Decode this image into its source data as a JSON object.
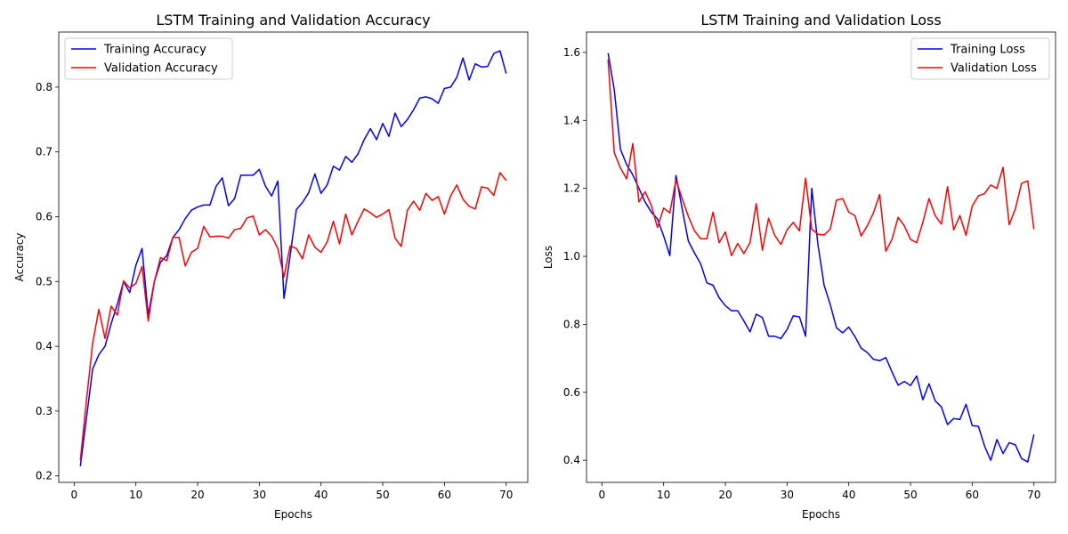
{
  "chart_data": [
    {
      "type": "line",
      "title": "LSTM Training and Validation Accuracy",
      "xlabel": "Epochs",
      "ylabel": "Accuracy",
      "xlim": [
        -2.5,
        73.5
      ],
      "ylim": [
        0.19,
        0.885
      ],
      "xticks": [
        0,
        10,
        20,
        30,
        40,
        50,
        60,
        70
      ],
      "yticks": [
        0.2,
        0.3,
        0.4,
        0.5,
        0.6,
        0.7,
        0.8
      ],
      "legend_position": "top-left",
      "grid": false,
      "x": [
        1,
        2,
        3,
        4,
        5,
        6,
        7,
        8,
        9,
        10,
        11,
        12,
        13,
        14,
        15,
        16,
        17,
        18,
        19,
        20,
        21,
        22,
        23,
        24,
        25,
        26,
        27,
        28,
        29,
        30,
        31,
        32,
        33,
        34,
        35,
        36,
        37,
        38,
        39,
        40,
        41,
        42,
        43,
        44,
        45,
        46,
        47,
        48,
        49,
        50,
        51,
        52,
        53,
        54,
        55,
        56,
        57,
        58,
        59,
        60,
        61,
        62,
        63,
        64,
        65,
        66,
        67,
        68,
        69,
        70
      ],
      "series": [
        {
          "name": "Training Accuracy",
          "color": "#0000ff",
          "values": [
            0.215,
            0.29,
            0.365,
            0.387,
            0.4,
            0.435,
            0.465,
            0.5,
            0.483,
            0.525,
            0.551,
            0.448,
            0.5,
            0.53,
            0.54,
            0.568,
            0.58,
            0.597,
            0.61,
            0.615,
            0.618,
            0.618,
            0.647,
            0.66,
            0.617,
            0.628,
            0.664,
            0.664,
            0.664,
            0.673,
            0.647,
            0.632,
            0.655,
            0.474,
            0.54,
            0.611,
            0.622,
            0.637,
            0.666,
            0.636,
            0.649,
            0.678,
            0.672,
            0.693,
            0.684,
            0.697,
            0.719,
            0.736,
            0.719,
            0.744,
            0.724,
            0.76,
            0.739,
            0.75,
            0.765,
            0.783,
            0.785,
            0.782,
            0.775,
            0.798,
            0.8,
            0.815,
            0.845,
            0.811,
            0.836,
            0.831,
            0.832,
            0.852,
            0.856,
            0.821
          ]
        },
        {
          "name": "Validation Accuracy",
          "color": "#ff0000",
          "values": [
            0.224,
            0.317,
            0.405,
            0.457,
            0.412,
            0.462,
            0.448,
            0.501,
            0.49,
            0.497,
            0.523,
            0.439,
            0.5,
            0.537,
            0.532,
            0.568,
            0.568,
            0.524,
            0.545,
            0.551,
            0.585,
            0.569,
            0.57,
            0.57,
            0.567,
            0.58,
            0.582,
            0.598,
            0.601,
            0.572,
            0.58,
            0.57,
            0.551,
            0.507,
            0.555,
            0.551,
            0.535,
            0.572,
            0.553,
            0.545,
            0.561,
            0.593,
            0.558,
            0.604,
            0.572,
            0.593,
            0.612,
            0.606,
            0.599,
            0.604,
            0.611,
            0.567,
            0.554,
            0.61,
            0.624,
            0.61,
            0.636,
            0.625,
            0.631,
            0.604,
            0.632,
            0.649,
            0.627,
            0.616,
            0.612,
            0.646,
            0.644,
            0.633,
            0.668,
            0.656
          ]
        }
      ]
    },
    {
      "type": "line",
      "title": "LSTM Training and Validation Loss",
      "xlabel": "Epochs",
      "ylabel": "Loss",
      "xlim": [
        -2.5,
        73.5
      ],
      "ylim": [
        0.335,
        1.66
      ],
      "xticks": [
        0,
        10,
        20,
        30,
        40,
        50,
        60,
        70
      ],
      "yticks": [
        0.4,
        0.6,
        0.8,
        1.0,
        1.2,
        1.4,
        1.6
      ],
      "legend_position": "top-right",
      "grid": false,
      "x": [
        1,
        2,
        3,
        4,
        5,
        6,
        7,
        8,
        9,
        10,
        11,
        12,
        13,
        14,
        15,
        16,
        17,
        18,
        19,
        20,
        21,
        22,
        23,
        24,
        25,
        26,
        27,
        28,
        29,
        30,
        31,
        32,
        33,
        34,
        35,
        36,
        37,
        38,
        39,
        40,
        41,
        42,
        43,
        44,
        45,
        46,
        47,
        48,
        49,
        50,
        51,
        52,
        53,
        54,
        55,
        56,
        57,
        58,
        59,
        60,
        61,
        62,
        63,
        64,
        65,
        66,
        67,
        68,
        69,
        70
      ],
      "series": [
        {
          "name": "Training Loss",
          "color": "#0000ff",
          "values": [
            1.598,
            1.49,
            1.315,
            1.27,
            1.24,
            1.2,
            1.16,
            1.13,
            1.11,
            1.06,
            1.002,
            1.238,
            1.14,
            1.045,
            1.01,
            0.978,
            0.922,
            0.915,
            0.878,
            0.855,
            0.84,
            0.84,
            0.81,
            0.778,
            0.83,
            0.82,
            0.765,
            0.765,
            0.758,
            0.785,
            0.825,
            0.822,
            0.765,
            1.2,
            1.035,
            0.915,
            0.858,
            0.79,
            0.775,
            0.792,
            0.764,
            0.73,
            0.717,
            0.697,
            0.693,
            0.702,
            0.66,
            0.621,
            0.632,
            0.62,
            0.648,
            0.578,
            0.625,
            0.575,
            0.557,
            0.505,
            0.523,
            0.52,
            0.565,
            0.502,
            0.5,
            0.442,
            0.4,
            0.461,
            0.42,
            0.452,
            0.445,
            0.405,
            0.395,
            0.476
          ]
        },
        {
          "name": "Validation Loss",
          "color": "#ff0000",
          "values": [
            1.58,
            1.305,
            1.26,
            1.228,
            1.332,
            1.16,
            1.19,
            1.15,
            1.085,
            1.142,
            1.128,
            1.225,
            1.17,
            1.118,
            1.075,
            1.052,
            1.052,
            1.13,
            1.04,
            1.072,
            1.002,
            1.038,
            1.008,
            1.04,
            1.155,
            1.018,
            1.112,
            1.062,
            1.035,
            1.078,
            1.1,
            1.075,
            1.23,
            1.08,
            1.065,
            1.063,
            1.08,
            1.165,
            1.17,
            1.13,
            1.12,
            1.06,
            1.09,
            1.128,
            1.182,
            1.015,
            1.05,
            1.115,
            1.09,
            1.05,
            1.04,
            1.1,
            1.17,
            1.12,
            1.095,
            1.205,
            1.078,
            1.12,
            1.062,
            1.148,
            1.178,
            1.185,
            1.21,
            1.2,
            1.262,
            1.093,
            1.14,
            1.215,
            1.222,
            1.08
          ]
        }
      ]
    }
  ]
}
